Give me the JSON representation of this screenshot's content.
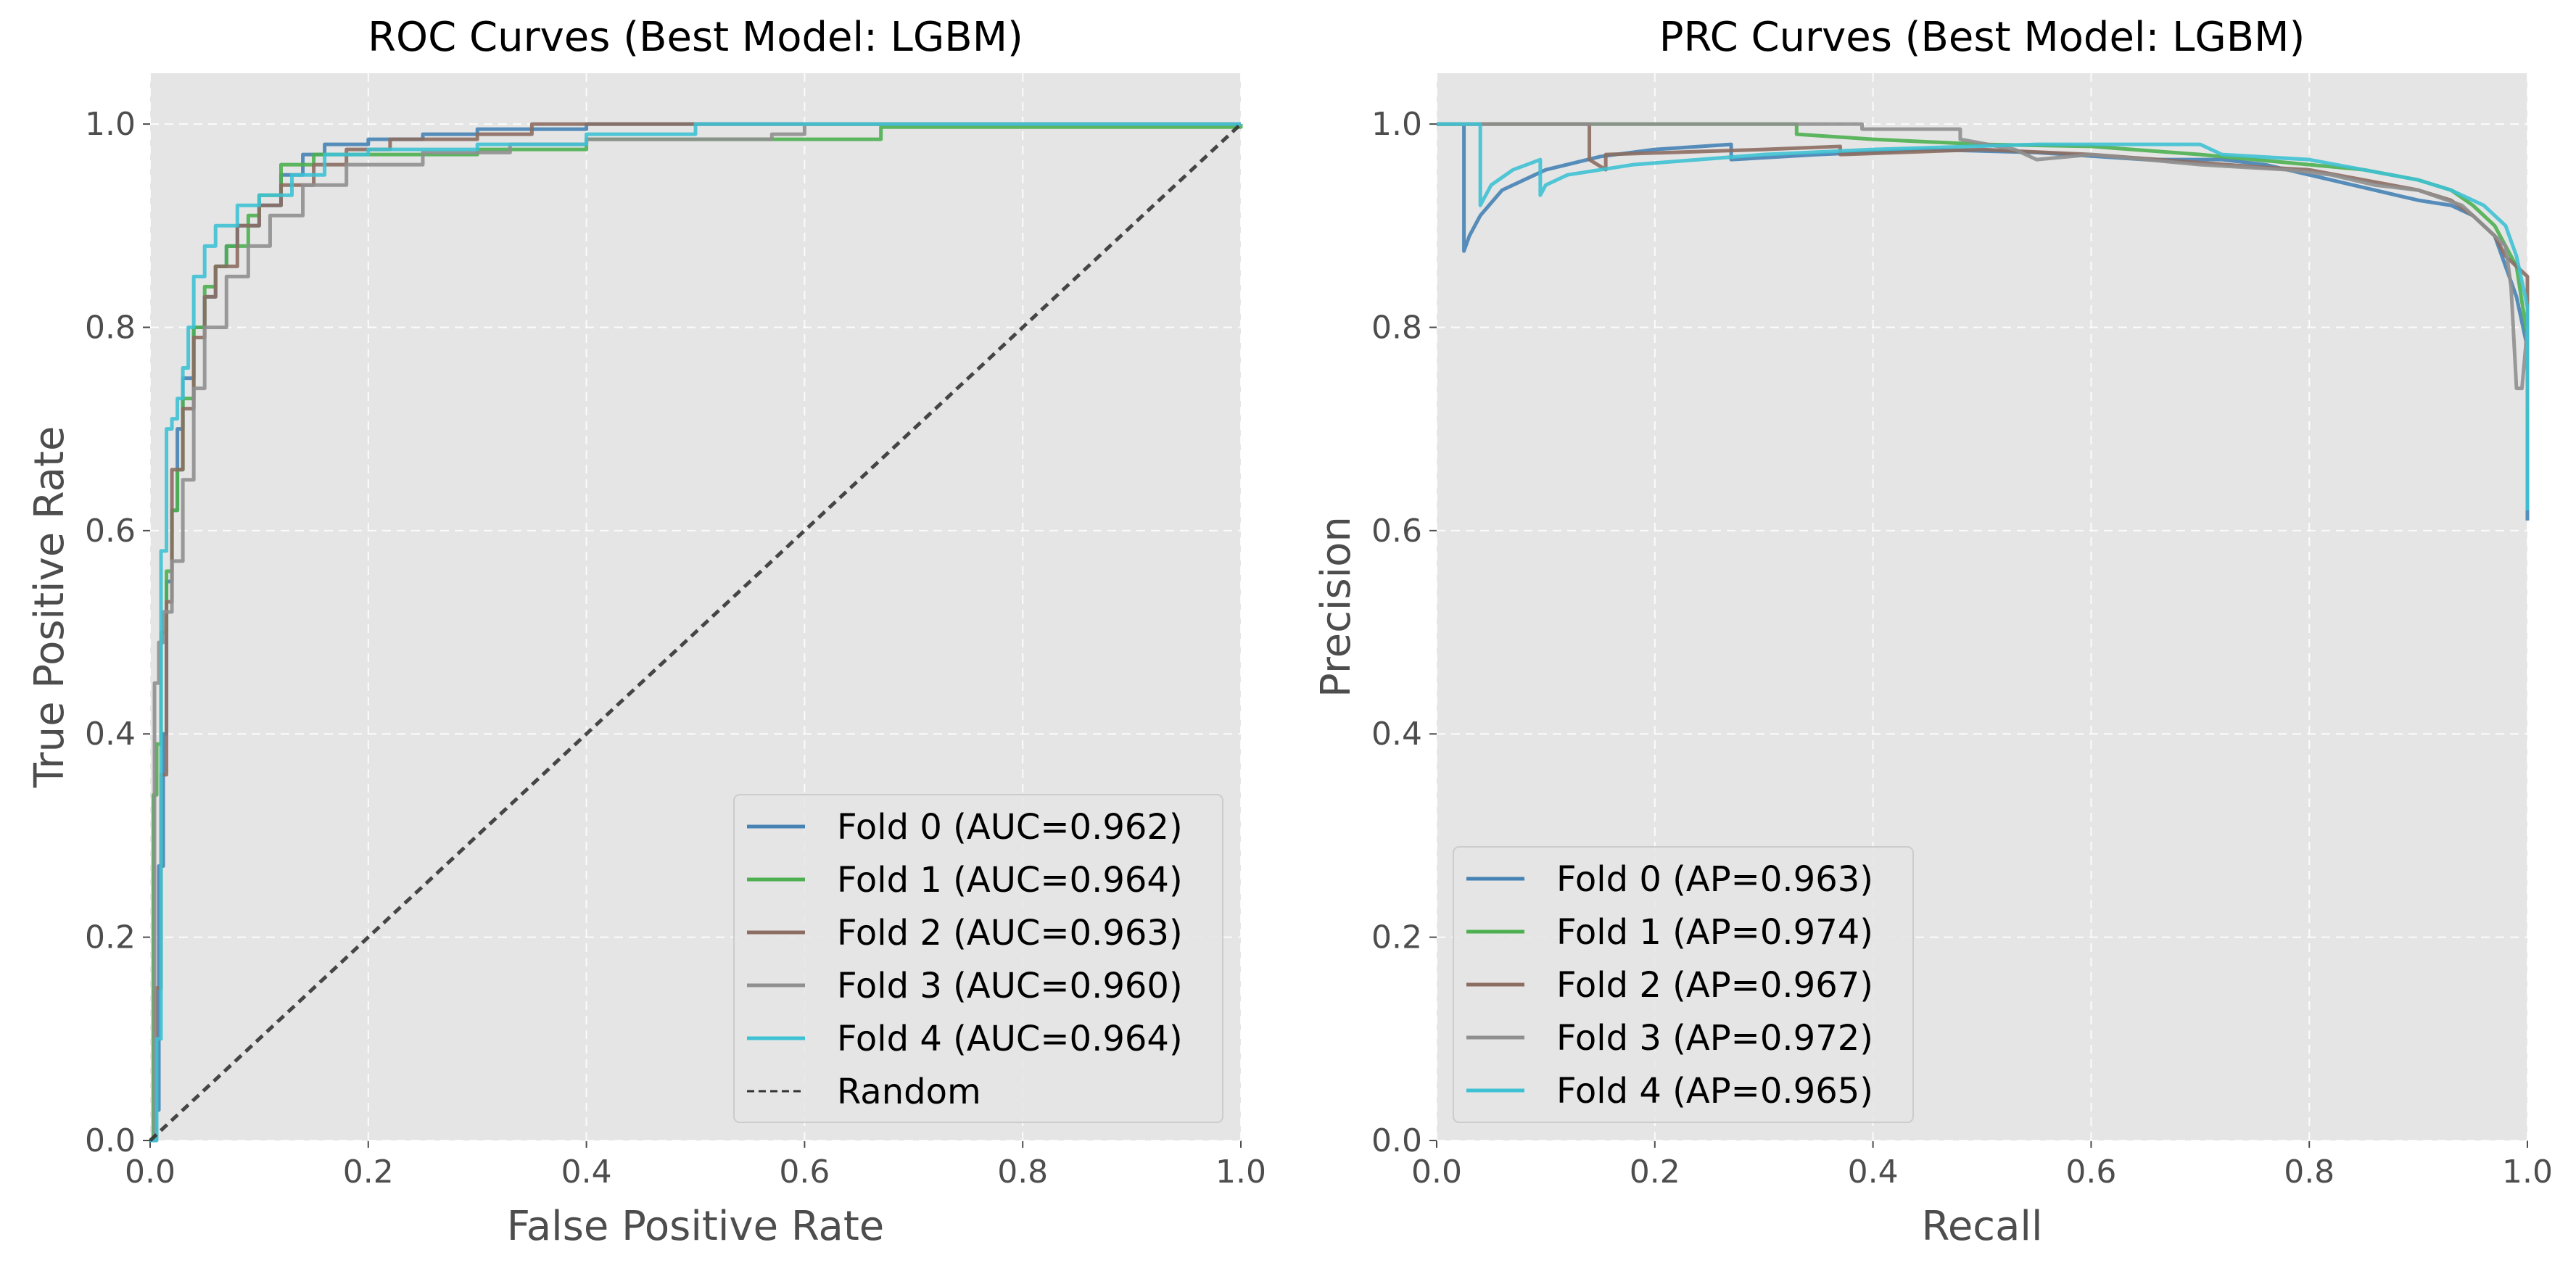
{
  "chart_data": [
    {
      "type": "line",
      "title": "ROC Curves (Best Model: LGBM)",
      "xlabel": "False Positive Rate",
      "ylabel": "True Positive Rate",
      "xlim": [
        0,
        1
      ],
      "ylim": [
        0,
        1.05
      ],
      "xticks": [
        "0.0",
        "0.2",
        "0.4",
        "0.6",
        "0.8",
        "1.0"
      ],
      "yticks": [
        "0.0",
        "0.2",
        "0.4",
        "0.6",
        "0.8",
        "1.0"
      ],
      "grid": true,
      "legend_position": "lower-right",
      "series": [
        {
          "name": "Fold 0 (AUC=0.962)",
          "color": "#4682b4",
          "step": true,
          "x": [
            0,
            0.005,
            0.008,
            0.012,
            0.015,
            0.02,
            0.025,
            0.03,
            0.04,
            0.05,
            0.06,
            0.07,
            0.08,
            0.1,
            0.12,
            0.14,
            0.16,
            0.2,
            0.25,
            0.3,
            0.4,
            1.0
          ],
          "y": [
            0,
            0.03,
            0.27,
            0.4,
            0.55,
            0.62,
            0.7,
            0.75,
            0.8,
            0.83,
            0.86,
            0.88,
            0.9,
            0.92,
            0.95,
            0.97,
            0.98,
            0.985,
            0.99,
            0.995,
            1.0,
            1.0
          ]
        },
        {
          "name": "Fold 1 (AUC=0.964)",
          "color": "#4caf50",
          "step": true,
          "x": [
            0,
            0.003,
            0.006,
            0.01,
            0.015,
            0.02,
            0.025,
            0.03,
            0.04,
            0.05,
            0.06,
            0.07,
            0.09,
            0.1,
            0.12,
            0.15,
            0.2,
            0.3,
            0.4,
            0.67,
            1.0
          ],
          "y": [
            0,
            0.34,
            0.39,
            0.5,
            0.56,
            0.62,
            0.66,
            0.73,
            0.8,
            0.84,
            0.86,
            0.88,
            0.91,
            0.93,
            0.96,
            0.97,
            0.97,
            0.975,
            0.985,
            0.997,
            1.0
          ]
        },
        {
          "name": "Fold 2 (AUC=0.963)",
          "color": "#8c6d62",
          "step": true,
          "x": [
            0,
            0.005,
            0.01,
            0.015,
            0.02,
            0.03,
            0.04,
            0.05,
            0.06,
            0.08,
            0.1,
            0.12,
            0.15,
            0.18,
            0.22,
            0.3,
            0.35,
            0.53,
            1.0
          ],
          "y": [
            0,
            0.15,
            0.36,
            0.53,
            0.66,
            0.72,
            0.79,
            0.83,
            0.86,
            0.9,
            0.92,
            0.94,
            0.96,
            0.975,
            0.985,
            0.99,
            1.0,
            1.0,
            1.0
          ]
        },
        {
          "name": "Fold 3 (AUC=0.960)",
          "color": "#8f8f8f",
          "step": true,
          "x": [
            0,
            0.004,
            0.008,
            0.012,
            0.02,
            0.03,
            0.04,
            0.05,
            0.07,
            0.09,
            0.11,
            0.14,
            0.18,
            0.25,
            0.33,
            0.4,
            0.57,
            0.6,
            1.0
          ],
          "y": [
            0,
            0.45,
            0.49,
            0.52,
            0.57,
            0.65,
            0.74,
            0.8,
            0.85,
            0.88,
            0.91,
            0.94,
            0.96,
            0.972,
            0.98,
            0.985,
            0.99,
            1.0,
            1.0
          ]
        },
        {
          "name": "Fold 4 (AUC=0.964)",
          "color": "#3ec1d3",
          "step": true,
          "x": [
            0,
            0.006,
            0.01,
            0.015,
            0.02,
            0.025,
            0.03,
            0.035,
            0.04,
            0.05,
            0.06,
            0.08,
            0.1,
            0.13,
            0.16,
            0.2,
            0.3,
            0.4,
            0.5,
            1.0
          ],
          "y": [
            0,
            0.1,
            0.58,
            0.7,
            0.71,
            0.73,
            0.76,
            0.8,
            0.85,
            0.88,
            0.9,
            0.92,
            0.93,
            0.95,
            0.97,
            0.975,
            0.98,
            0.99,
            1.0,
            1.0
          ]
        },
        {
          "name": "Random",
          "color": "#333333",
          "dashed": true,
          "x": [
            0,
            1
          ],
          "y": [
            0,
            1
          ]
        }
      ]
    },
    {
      "type": "line",
      "title": "PRC Curves (Best Model: LGBM)",
      "xlabel": "Recall",
      "ylabel": "Precision",
      "xlim": [
        0,
        1
      ],
      "ylim": [
        0,
        1.05
      ],
      "xticks": [
        "0.0",
        "0.2",
        "0.4",
        "0.6",
        "0.8",
        "1.0"
      ],
      "yticks": [
        "0.0",
        "0.2",
        "0.4",
        "0.6",
        "0.8",
        "1.0"
      ],
      "grid": true,
      "legend_position": "lower-left",
      "series": [
        {
          "name": "Fold 0 (AP=0.963)",
          "color": "#4682b4",
          "x": [
            0,
            0.025,
            0.025,
            0.03,
            0.04,
            0.06,
            0.1,
            0.15,
            0.2,
            0.27,
            0.27,
            0.35,
            0.45,
            0.55,
            0.65,
            0.72,
            0.76,
            0.78,
            0.82,
            0.86,
            0.9,
            0.93,
            0.95,
            0.97,
            0.98,
            0.99,
            1.0,
            1.0
          ],
          "y": [
            1.0,
            1.0,
            0.875,
            0.89,
            0.91,
            0.935,
            0.955,
            0.968,
            0.975,
            0.98,
            0.965,
            0.97,
            0.975,
            0.972,
            0.965,
            0.965,
            0.96,
            0.955,
            0.945,
            0.935,
            0.925,
            0.92,
            0.91,
            0.89,
            0.86,
            0.83,
            0.78,
            0.61
          ]
        },
        {
          "name": "Fold 1 (AP=0.974)",
          "color": "#4caf50",
          "x": [
            0,
            0.33,
            0.33,
            0.4,
            0.5,
            0.6,
            0.7,
            0.75,
            0.8,
            0.85,
            0.9,
            0.93,
            0.95,
            0.97,
            0.98,
            0.99,
            1.0,
            1.0
          ],
          "y": [
            1.0,
            1.0,
            0.99,
            0.985,
            0.98,
            0.978,
            0.97,
            0.965,
            0.96,
            0.955,
            0.945,
            0.935,
            0.92,
            0.9,
            0.88,
            0.86,
            0.79,
            0.7
          ]
        },
        {
          "name": "Fold 2 (AP=0.967)",
          "color": "#8c6d62",
          "x": [
            0,
            0.14,
            0.14,
            0.155,
            0.155,
            0.3,
            0.37,
            0.37,
            0.5,
            0.6,
            0.7,
            0.75,
            0.8,
            0.85,
            0.9,
            0.93,
            0.95,
            0.97,
            0.98,
            0.99,
            1.0,
            1.0
          ],
          "y": [
            1.0,
            1.0,
            0.965,
            0.955,
            0.97,
            0.975,
            0.978,
            0.97,
            0.975,
            0.97,
            0.962,
            0.958,
            0.955,
            0.945,
            0.935,
            0.925,
            0.91,
            0.89,
            0.87,
            0.86,
            0.85,
            0.78
          ]
        },
        {
          "name": "Fold 3 (AP=0.972)",
          "color": "#8f8f8f",
          "x": [
            0,
            0.39,
            0.39,
            0.48,
            0.48,
            0.53,
            0.55,
            0.6,
            0.7,
            0.78,
            0.82,
            0.86,
            0.9,
            0.94,
            0.96,
            0.98,
            0.985,
            0.99,
            0.995,
            1.0,
            1.0
          ],
          "y": [
            1.0,
            1.0,
            0.995,
            0.995,
            0.985,
            0.975,
            0.965,
            0.97,
            0.96,
            0.955,
            0.95,
            0.94,
            0.935,
            0.92,
            0.9,
            0.88,
            0.84,
            0.74,
            0.74,
            0.8,
            0.72
          ]
        },
        {
          "name": "Fold 4 (AP=0.965)",
          "color": "#3ec1d3",
          "x": [
            0,
            0.04,
            0.04,
            0.05,
            0.07,
            0.095,
            0.095,
            0.1,
            0.12,
            0.18,
            0.3,
            0.4,
            0.55,
            0.7,
            0.72,
            0.8,
            0.85,
            0.9,
            0.93,
            0.96,
            0.98,
            0.99,
            1.0,
            1.0
          ],
          "y": [
            1.0,
            1.0,
            0.92,
            0.94,
            0.955,
            0.965,
            0.93,
            0.94,
            0.95,
            0.96,
            0.97,
            0.975,
            0.98,
            0.98,
            0.97,
            0.965,
            0.955,
            0.945,
            0.935,
            0.92,
            0.9,
            0.87,
            0.82,
            0.62
          ]
        }
      ]
    }
  ]
}
